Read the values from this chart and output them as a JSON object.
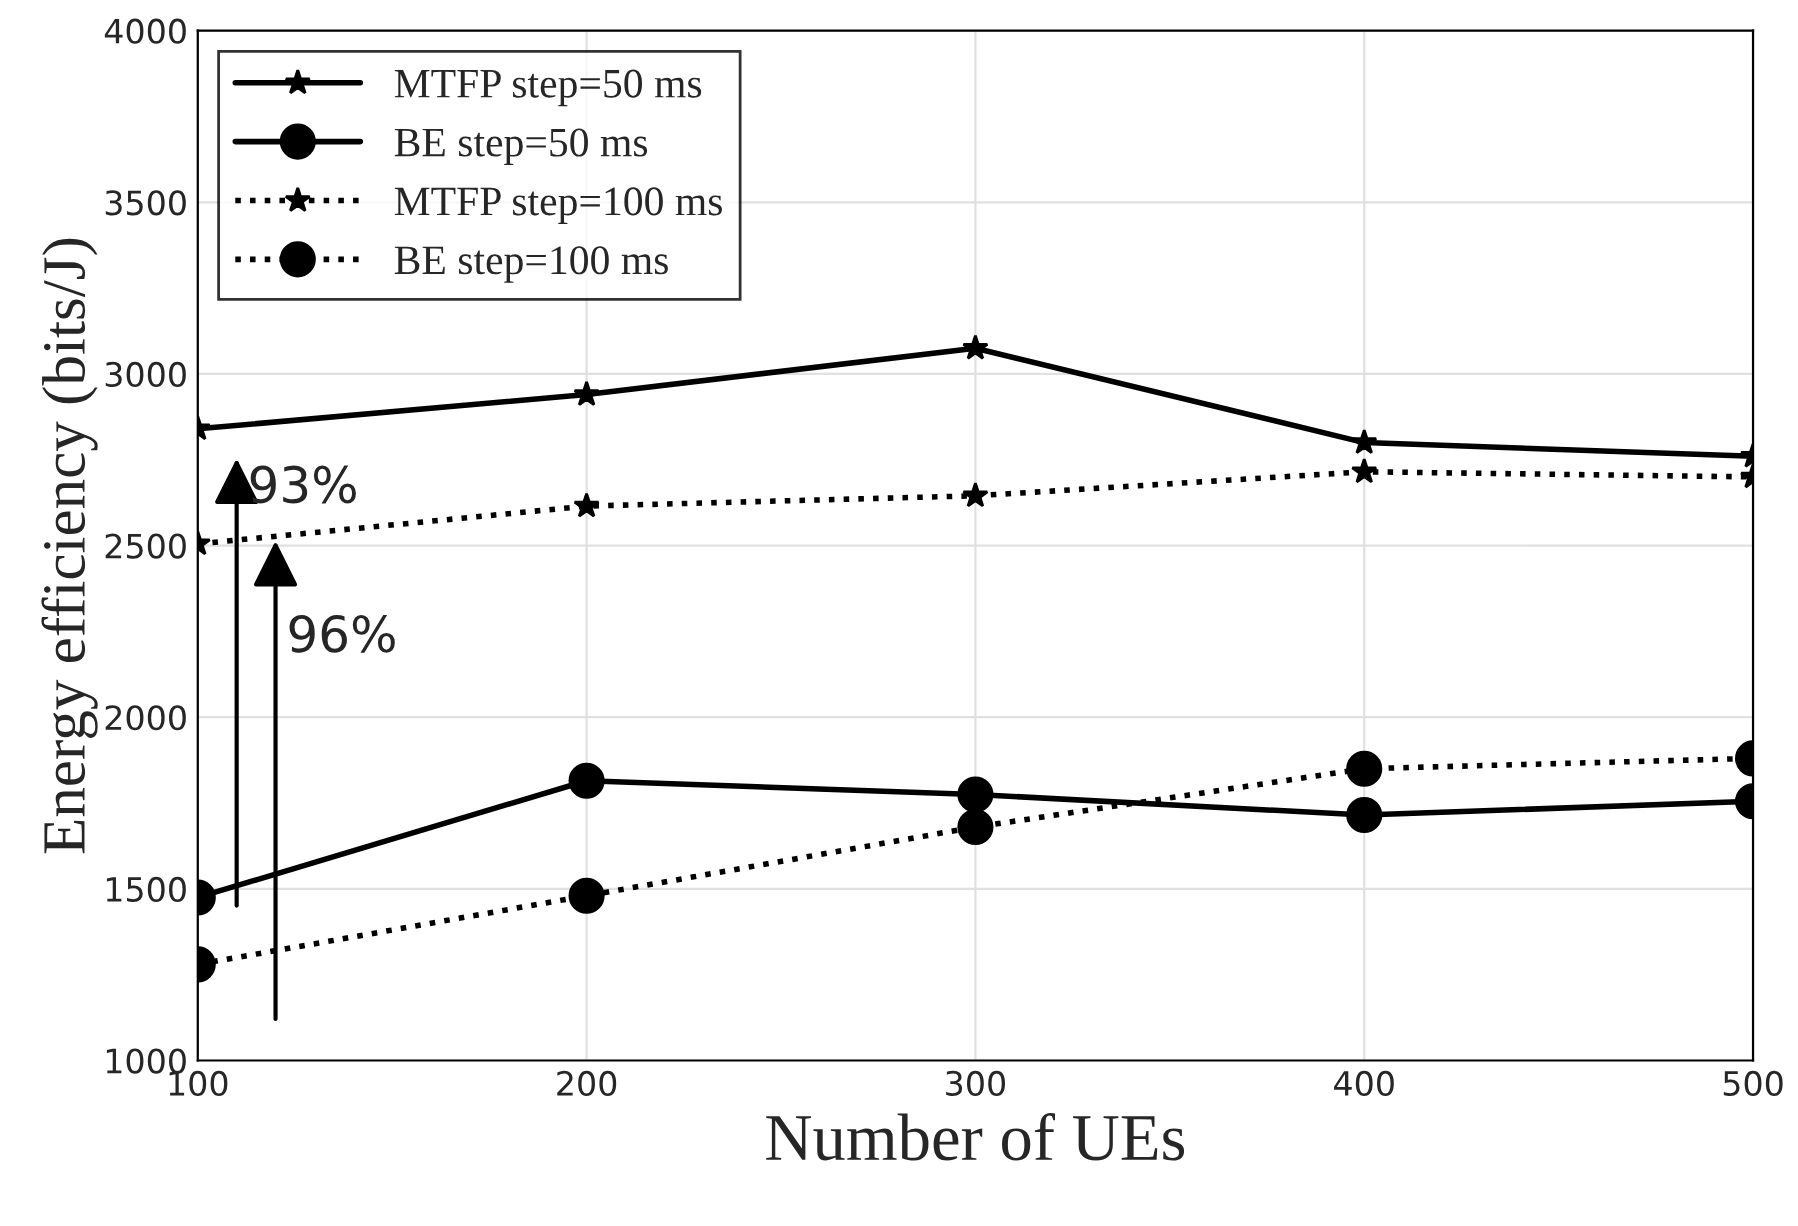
{
  "chart_data": {
    "type": "line",
    "xlabel": "Number of UEs",
    "ylabel": "Energy efficiency (bits/J)",
    "x": [
      100,
      200,
      300,
      400,
      500
    ],
    "series": [
      {
        "name": "MTFP step=50 ms",
        "color": "#000000",
        "marker": "star",
        "line_style": "solid",
        "values": [
          2840,
          2940,
          3075,
          2800,
          2760
        ]
      },
      {
        "name": "BE step=50 ms",
        "color": "#000000",
        "marker": "circle",
        "line_style": "solid",
        "values": [
          1475,
          1815,
          1775,
          1715,
          1755
        ]
      },
      {
        "name": "MTFP step=100 ms",
        "color": "#000000",
        "marker": "star",
        "line_style": "dotted",
        "values": [
          2505,
          2615,
          2645,
          2715,
          2700
        ]
      },
      {
        "name": "BE step=100 ms",
        "color": "#000000",
        "marker": "circle",
        "line_style": "dotted",
        "values": [
          1280,
          1480,
          1680,
          1850,
          1880
        ]
      }
    ],
    "annotations": [
      "93%",
      "96%"
    ],
    "xlim": [
      100,
      500
    ],
    "xticks": [
      100,
      200,
      300,
      400,
      500
    ],
    "ylim": [
      1000,
      4000
    ],
    "yticks": [
      1000,
      1500,
      2000,
      2500,
      3000,
      3500,
      4000
    ],
    "grid": true,
    "legend": "top left"
  }
}
